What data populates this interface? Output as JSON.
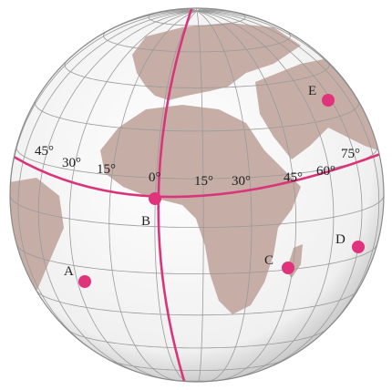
{
  "longitude_labels": [
    "45°",
    "30°",
    "15°",
    "0°",
    "15°",
    "30°",
    "45°",
    "60°",
    "75°"
  ],
  "points": [
    "A",
    "B",
    "C",
    "D",
    "E"
  ]
}
